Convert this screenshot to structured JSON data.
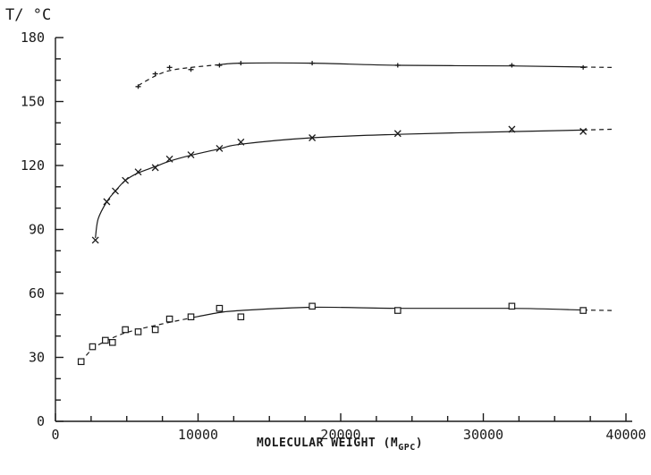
{
  "chart_data": {
    "type": "line",
    "title": "",
    "ylabel": "T/ °C",
    "xlabel": "MOLECULAR WEIGHT (M",
    "xlabel_sub": "GPC",
    "xlabel_close": ")",
    "xlim": [
      0,
      40000
    ],
    "ylim": [
      0,
      180
    ],
    "x_ticks": [
      0,
      10000,
      20000,
      30000,
      40000
    ],
    "y_ticks": [
      0,
      30,
      60,
      90,
      120,
      150,
      180
    ],
    "grid": false,
    "series": [
      {
        "marker": "plus",
        "points": [
          {
            "x": 5800,
            "y": 157
          },
          {
            "x": 7000,
            "y": 163
          },
          {
            "x": 8000,
            "y": 166
          },
          {
            "x": 9500,
            "y": 165
          },
          {
            "x": 11500,
            "y": 167
          },
          {
            "x": 13000,
            "y": 168
          },
          {
            "x": 18000,
            "y": 168
          },
          {
            "x": 24000,
            "y": 167
          },
          {
            "x": 32000,
            "y": 167
          },
          {
            "x": 37000,
            "y": 166
          }
        ],
        "curve": [
          {
            "x": 5800,
            "y": 157.5
          },
          {
            "x": 7000,
            "y": 162
          },
          {
            "x": 8000,
            "y": 164.5
          },
          {
            "x": 9500,
            "y": 166
          },
          {
            "x": 11500,
            "y": 167.3
          },
          {
            "x": 13000,
            "y": 168
          },
          {
            "x": 18000,
            "y": 168
          },
          {
            "x": 24000,
            "y": 167
          },
          {
            "x": 32000,
            "y": 166.7
          },
          {
            "x": 37000,
            "y": 166.2
          },
          {
            "x": 39000,
            "y": 166
          }
        ],
        "dashed_until": 11500,
        "dashed_after": 37000
      },
      {
        "marker": "cross",
        "points": [
          {
            "x": 2800,
            "y": 85
          },
          {
            "x": 3600,
            "y": 103
          },
          {
            "x": 4200,
            "y": 108
          },
          {
            "x": 4900,
            "y": 113
          },
          {
            "x": 5800,
            "y": 117
          },
          {
            "x": 7000,
            "y": 119
          },
          {
            "x": 8000,
            "y": 123
          },
          {
            "x": 9500,
            "y": 125
          },
          {
            "x": 11500,
            "y": 128
          },
          {
            "x": 13000,
            "y": 131
          },
          {
            "x": 18000,
            "y": 133
          },
          {
            "x": 24000,
            "y": 135
          },
          {
            "x": 32000,
            "y": 137
          },
          {
            "x": 37000,
            "y": 136
          }
        ],
        "curve": [
          {
            "x": 2800,
            "y": 86
          },
          {
            "x": 3000,
            "y": 95
          },
          {
            "x": 3600,
            "y": 103
          },
          {
            "x": 4200,
            "y": 108
          },
          {
            "x": 4900,
            "y": 113
          },
          {
            "x": 5800,
            "y": 116.5
          },
          {
            "x": 7000,
            "y": 119.5
          },
          {
            "x": 8000,
            "y": 122
          },
          {
            "x": 9500,
            "y": 124.8
          },
          {
            "x": 11500,
            "y": 127.8
          },
          {
            "x": 13000,
            "y": 130
          },
          {
            "x": 18000,
            "y": 133
          },
          {
            "x": 24000,
            "y": 134.6
          },
          {
            "x": 32000,
            "y": 135.9
          },
          {
            "x": 37000,
            "y": 136.6
          },
          {
            "x": 39000,
            "y": 137
          }
        ],
        "dashed_until": 0,
        "dashed_after": 37000
      },
      {
        "marker": "square",
        "points": [
          {
            "x": 1800,
            "y": 28
          },
          {
            "x": 2600,
            "y": 35
          },
          {
            "x": 3500,
            "y": 38
          },
          {
            "x": 4000,
            "y": 37
          },
          {
            "x": 4900,
            "y": 43
          },
          {
            "x": 5800,
            "y": 42
          },
          {
            "x": 7000,
            "y": 43
          },
          {
            "x": 8000,
            "y": 48
          },
          {
            "x": 9500,
            "y": 49
          },
          {
            "x": 11500,
            "y": 53
          },
          {
            "x": 13000,
            "y": 49
          },
          {
            "x": 18000,
            "y": 54
          },
          {
            "x": 24000,
            "y": 52
          },
          {
            "x": 32000,
            "y": 54
          },
          {
            "x": 37000,
            "y": 52
          }
        ],
        "curve": [
          {
            "x": 1800,
            "y": 28
          },
          {
            "x": 2600,
            "y": 34
          },
          {
            "x": 3500,
            "y": 37.5
          },
          {
            "x": 4900,
            "y": 41.5
          },
          {
            "x": 7000,
            "y": 45
          },
          {
            "x": 9500,
            "y": 48.5
          },
          {
            "x": 11500,
            "y": 51
          },
          {
            "x": 13000,
            "y": 52
          },
          {
            "x": 18000,
            "y": 53.5
          },
          {
            "x": 24000,
            "y": 53
          },
          {
            "x": 32000,
            "y": 53
          },
          {
            "x": 37000,
            "y": 52.2
          },
          {
            "x": 39000,
            "y": 52
          }
        ],
        "dashed_until": 9500,
        "dashed_after": 37000
      }
    ]
  }
}
